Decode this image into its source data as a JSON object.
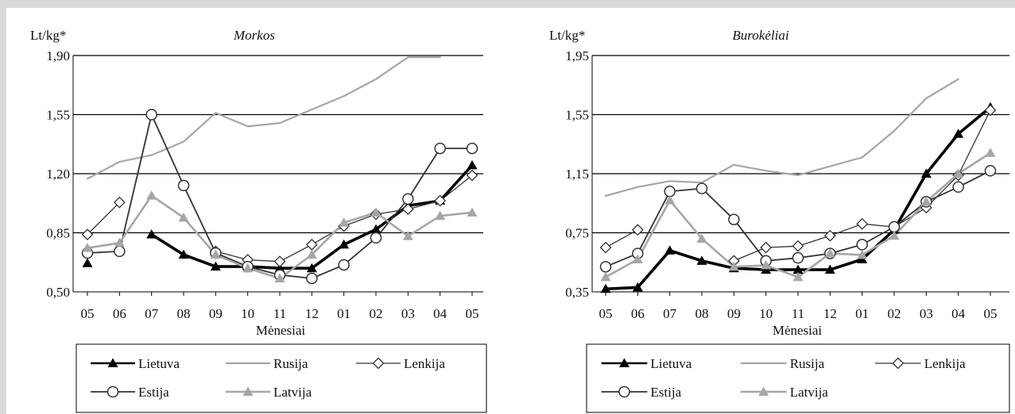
{
  "chart_data": [
    {
      "type": "line",
      "title": "Morkos",
      "unit_label": "Lt/kg*",
      "xlabel": "Mėnesiai",
      "categories": [
        "05",
        "06",
        "07",
        "08",
        "09",
        "10",
        "11",
        "12",
        "01",
        "02",
        "03",
        "04",
        "05"
      ],
      "y_ticks": [
        "0,50",
        "0,85",
        "1,20",
        "1,55",
        "1,90"
      ],
      "ylim": [
        0.5,
        1.9
      ],
      "grid": "horizontal",
      "legend_position": "bottom",
      "series": [
        {
          "name": "Lietuva",
          "color": "#000000",
          "marker": "triangle-filled",
          "values": [
            0.67,
            null,
            0.84,
            0.72,
            0.65,
            0.65,
            0.64,
            0.64,
            0.78,
            0.87,
            1.01,
            1.04,
            1.25
          ]
        },
        {
          "name": "Rusija",
          "color": "#a6a6a6",
          "marker": "none",
          "values": [
            1.17,
            1.27,
            1.31,
            1.39,
            1.56,
            1.48,
            1.5,
            1.58,
            1.66,
            1.76,
            1.89,
            1.89,
            null
          ]
        },
        {
          "name": "Lenkija",
          "color": "#333333",
          "marker": "diamond-open",
          "values": [
            0.84,
            1.03,
            null,
            null,
            0.74,
            0.69,
            0.68,
            0.78,
            0.89,
            0.96,
            0.99,
            1.04,
            1.19
          ]
        },
        {
          "name": "Estija",
          "color": "#333333",
          "marker": "circle-open",
          "values": [
            0.73,
            0.74,
            1.55,
            1.13,
            0.73,
            0.65,
            0.6,
            0.58,
            0.66,
            0.82,
            1.05,
            1.35,
            1.35
          ]
        },
        {
          "name": "Latvija",
          "color": "#a6a6a6",
          "marker": "triangle-filled",
          "values": [
            0.76,
            0.79,
            1.07,
            0.94,
            0.72,
            0.64,
            0.58,
            0.72,
            0.91,
            0.97,
            0.83,
            0.95,
            0.97
          ]
        }
      ]
    },
    {
      "type": "line",
      "title": "Burokėliai",
      "unit_label": "Lt/kg*",
      "xlabel": "Mėnesiai",
      "categories": [
        "05",
        "06",
        "07",
        "08",
        "09",
        "10",
        "11",
        "12",
        "01",
        "02",
        "03",
        "04",
        "05"
      ],
      "y_ticks": [
        "0,35",
        "0,75",
        "1,15",
        "1,55",
        "1,95"
      ],
      "ylim": [
        0.35,
        1.95
      ],
      "grid": "horizontal",
      "legend_position": "bottom",
      "series": [
        {
          "name": "Lietuva",
          "color": "#000000",
          "marker": "triangle-filled",
          "values": [
            0.37,
            0.38,
            0.63,
            0.56,
            0.51,
            0.5,
            0.5,
            0.5,
            0.57,
            0.77,
            1.15,
            1.42,
            1.6
          ]
        },
        {
          "name": "Rusija",
          "color": "#a6a6a6",
          "marker": "none",
          "values": [
            1.0,
            1.06,
            1.1,
            1.09,
            1.21,
            1.17,
            1.14,
            1.2,
            1.26,
            1.44,
            1.66,
            1.79,
            null
          ]
        },
        {
          "name": "Lenkija",
          "color": "#333333",
          "marker": "diamond-open",
          "values": [
            0.65,
            0.77,
            null,
            null,
            0.56,
            0.65,
            0.66,
            0.73,
            0.81,
            0.79,
            0.92,
            1.14,
            1.58
          ]
        },
        {
          "name": "Estija",
          "color": "#333333",
          "marker": "circle-open",
          "values": [
            0.52,
            0.61,
            1.03,
            1.05,
            0.84,
            0.56,
            0.58,
            0.61,
            0.67,
            0.79,
            0.96,
            1.06,
            1.17
          ]
        },
        {
          "name": "Latvija",
          "color": "#a6a6a6",
          "marker": "triangle-filled",
          "values": [
            0.45,
            0.57,
            0.97,
            0.71,
            0.52,
            0.53,
            0.45,
            0.61,
            0.6,
            0.73,
            0.96,
            1.15,
            1.29
          ]
        }
      ]
    }
  ],
  "legend": [
    {
      "name": "Lietuva"
    },
    {
      "name": "Rusija"
    },
    {
      "name": "Lenkija"
    },
    {
      "name": "Estija"
    },
    {
      "name": "Latvija"
    }
  ]
}
